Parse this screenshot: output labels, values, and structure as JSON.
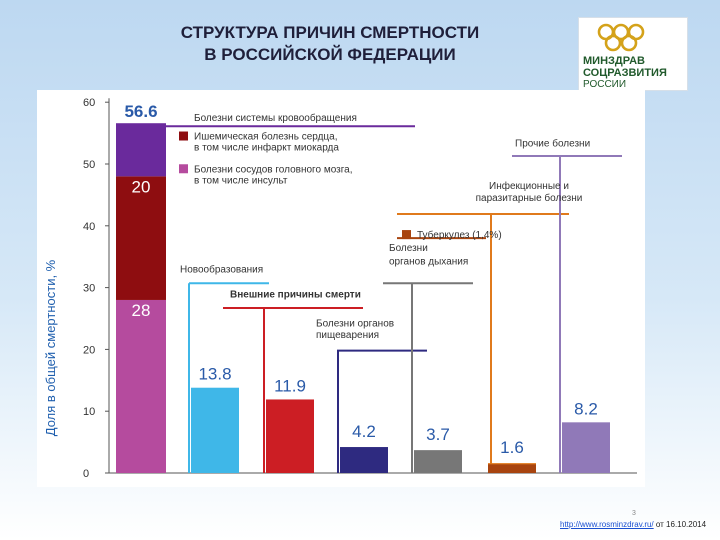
{
  "title": {
    "line1": "СТРУКТУРА ПРИЧИН СМЕРТНОСТИ",
    "line2": "В РОССИЙСКОЙ ФЕДЕРАЦИИ"
  },
  "logo": {
    "line1": "МИНЗДРАВ",
    "line2": "СОЦРАЗВИТИЯ",
    "line3": "РОССИИ"
  },
  "source": {
    "url": "http://www.rosminzdrav.ru/",
    "suffix": " от 16.10.2014"
  },
  "page_number": "3",
  "colors": {
    "circulatory_top": "#6a2a9c",
    "ischemic": "#8e0d10",
    "cerebrovascular": "#b54b9e",
    "neoplasms": "#3fb7e8",
    "external": "#cc1e24",
    "digestive": "#2e2a80",
    "respiratory": "#777777",
    "infectious": "#e07a1c",
    "tuberculosis": "#a8440f",
    "other": "#9079b8"
  },
  "chart_data": {
    "type": "bar",
    "ylabel": "Доля в общей смертности, %",
    "ylim": [
      0,
      60
    ],
    "yticks": [
      0,
      10,
      20,
      30,
      40,
      50,
      60
    ],
    "stacked": {
      "name": "Болезни системы кровообращения",
      "total_label": "56.6",
      "total": 56.6,
      "segments": [
        {
          "name": "Болезни сосудов головного мозга, в том числе инсульт",
          "value": 28,
          "label": "28",
          "color": "#b54b9e"
        },
        {
          "name": "Ишемическая болезнь сердца, в том числе инфаркт миокарда",
          "value": 20,
          "label": "20",
          "color": "#8e0d10"
        },
        {
          "name": "",
          "value": 8.6,
          "label": "",
          "color": "#6a2a9c"
        }
      ]
    },
    "bars": [
      {
        "name": "Новообразования",
        "value": 13.8,
        "label": "13.8",
        "color": "#3fb7e8"
      },
      {
        "name": "Внешние причины смерти",
        "value": 11.9,
        "label": "11.9",
        "color": "#cc1e24"
      },
      {
        "name": "Болезни органов пищеварения",
        "value": 4.2,
        "label": "4.2",
        "color": "#2e2a80"
      },
      {
        "name": "Болезни органов дыхания",
        "value": 3.7,
        "label": "3.7",
        "color": "#777777"
      },
      {
        "name": "Инфекционные и паразитарные болезни",
        "value": 1.6,
        "label": "1.6",
        "color": "#e07a1c",
        "sub": {
          "name": "Туберкулез (1,4%)",
          "value": 1.4,
          "color": "#a8440f"
        }
      },
      {
        "name": "Прочие болезни",
        "value": 8.2,
        "label": "8.2",
        "color": "#9079b8"
      }
    ],
    "legend": [
      {
        "name": "Ишемическая болезнь сердца,",
        "name2": "в том числе инфаркт миокарда",
        "color": "#8e0d10"
      },
      {
        "name": "Болезни сосудов головного мозга,",
        "name2": "в том числе инсульт",
        "color": "#b54b9e"
      }
    ]
  }
}
